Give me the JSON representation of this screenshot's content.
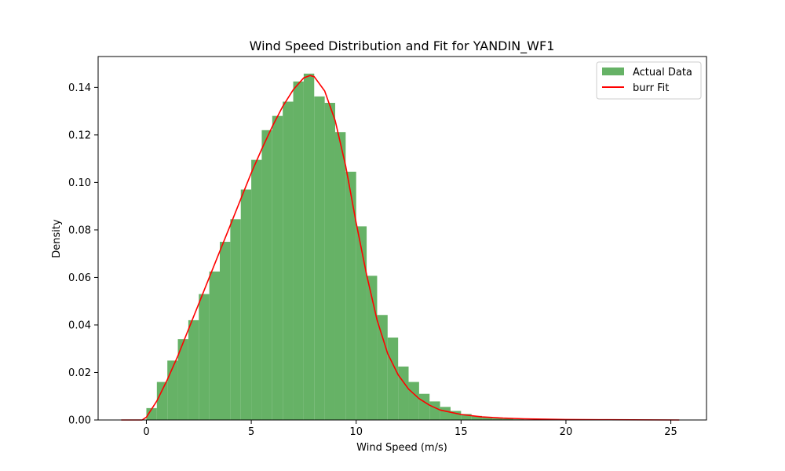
{
  "chart_data": {
    "type": "bar",
    "title": "Wind Speed Distribution and Fit for YANDIN_WF1",
    "xlabel": "Wind Speed (m/s)",
    "ylabel": "Density",
    "xlim": [
      -2.3,
      26.7
    ],
    "ylim": [
      0,
      0.153
    ],
    "xticks": [
      0,
      5,
      10,
      15,
      20,
      25
    ],
    "xtick_labels": [
      "0",
      "5",
      "10",
      "15",
      "20",
      "25"
    ],
    "yticks": [
      0,
      0.02,
      0.04,
      0.06,
      0.08,
      0.1,
      0.12,
      0.14
    ],
    "ytick_labels": [
      "0.00",
      "0.02",
      "0.04",
      "0.06",
      "0.08",
      "0.10",
      "0.12",
      "0.14"
    ],
    "grid": false,
    "legend_position": "top-right",
    "series": [
      {
        "name": "Actual Data",
        "kind": "histogram",
        "color": "#66b266",
        "bin_width": 0.5,
        "bin_starts": [
          0.0,
          0.5,
          1.0,
          1.5,
          2.0,
          2.5,
          3.0,
          3.5,
          4.0,
          4.5,
          5.0,
          5.5,
          6.0,
          6.5,
          7.0,
          7.5,
          8.0,
          8.5,
          9.0,
          9.5,
          10.0,
          10.5,
          11.0,
          11.5,
          12.0,
          12.5,
          13.0,
          13.5,
          14.0,
          14.5,
          15.0,
          15.5,
          16.0,
          16.5,
          17.0,
          17.5,
          18.0,
          18.5
        ],
        "values": [
          0.005,
          0.016,
          0.025,
          0.034,
          0.042,
          0.053,
          0.0625,
          0.075,
          0.0845,
          0.097,
          0.1095,
          0.122,
          0.128,
          0.134,
          0.1425,
          0.1458,
          0.1362,
          0.1335,
          0.1212,
          0.1045,
          0.0815,
          0.0607,
          0.0442,
          0.0347,
          0.0225,
          0.016,
          0.011,
          0.0078,
          0.0055,
          0.0038,
          0.0025,
          0.0017,
          0.0011,
          0.0007,
          0.0005,
          0.0003,
          0.0002,
          0.0001
        ]
      },
      {
        "name": "burr Fit",
        "kind": "line",
        "color": "#ff0000",
        "x": [
          -1.2,
          -0.2,
          0.0,
          0.5,
          1.0,
          1.5,
          2.0,
          2.5,
          3.0,
          3.5,
          4.0,
          4.5,
          5.0,
          5.5,
          6.0,
          6.5,
          7.0,
          7.5,
          7.8,
          8.0,
          8.5,
          9.0,
          9.5,
          10.0,
          10.5,
          11.0,
          11.5,
          12.0,
          12.5,
          13.0,
          13.5,
          14.0,
          15.0,
          16.0,
          17.0,
          18.0,
          20.0,
          22.0,
          25.4
        ],
        "y": [
          0.0,
          0.0,
          0.0012,
          0.008,
          0.017,
          0.027,
          0.038,
          0.049,
          0.06,
          0.071,
          0.082,
          0.093,
          0.104,
          0.114,
          0.1235,
          0.132,
          0.139,
          0.144,
          0.145,
          0.1445,
          0.1385,
          0.126,
          0.107,
          0.083,
          0.061,
          0.042,
          0.028,
          0.019,
          0.013,
          0.009,
          0.0062,
          0.0042,
          0.0023,
          0.0013,
          0.0008,
          0.0005,
          0.0002,
          0.0001,
          0.0
        ]
      }
    ]
  }
}
